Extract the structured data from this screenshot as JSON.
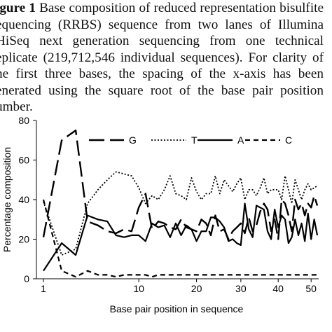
{
  "caption": {
    "label": "igure 1",
    "lines": [
      " Base composition of reduced representation bisulfite",
      "equencing (RRBS) sequence from two lanes of Illumina",
      "HiSeq next generation sequencing from one technical",
      "eplicate (219,712,546 individual sequences).  For clarity of",
      "he first three bases, the spacing of the x-axis has been",
      "enerated using the square root of the base pair position",
      "umber."
    ]
  },
  "chart_data": {
    "type": "line",
    "title": "",
    "xlabel": "Base pair position in sequence",
    "ylabel": "Percentage composition",
    "x_scale": "sqrt",
    "xlim": [
      1,
      52
    ],
    "ylim": [
      0,
      80
    ],
    "x_ticks": [
      1,
      10,
      20,
      30,
      40,
      50
    ],
    "y_ticks": [
      0,
      20,
      40,
      60,
      80
    ],
    "legend_position": "top",
    "x": [
      1,
      2,
      3,
      4,
      5,
      6,
      7,
      8,
      9,
      10,
      11,
      12,
      13,
      14,
      15,
      16,
      17,
      18,
      19,
      20,
      21,
      22,
      23,
      24,
      25,
      26,
      27,
      28,
      29,
      30,
      31,
      32,
      33,
      34,
      35,
      36,
      37,
      38,
      39,
      40,
      41,
      42,
      43,
      44,
      45,
      46,
      47,
      48,
      49,
      50,
      51,
      52
    ],
    "series": [
      {
        "name": "G",
        "dash": "long",
        "values": [
          21,
          70,
          75,
          29,
          27,
          24,
          23,
          25,
          24,
          36,
          43,
          25,
          29,
          28,
          26,
          25,
          30,
          26,
          25,
          24,
          30,
          28,
          22,
          32,
          24,
          25,
          20,
          24,
          26,
          28,
          23,
          31,
          24,
          27,
          34,
          38,
          35,
          24,
          30,
          20,
          40,
          38,
          32,
          24,
          40,
          35,
          38,
          32,
          38,
          36,
          42,
          37
        ]
      },
      {
        "name": "T",
        "dash": "dotted",
        "values": [
          39,
          12,
          15,
          38,
          45,
          50,
          54,
          53,
          52,
          46,
          38,
          42,
          40,
          45,
          52,
          43,
          42,
          40,
          51,
          44,
          40,
          43,
          43,
          52,
          43,
          50,
          47,
          44,
          48,
          51,
          40,
          45,
          45,
          42,
          46,
          51,
          43,
          45,
          45,
          45,
          40,
          52,
          45,
          38,
          50,
          45,
          40,
          45,
          48,
          45,
          46,
          47
        ]
      },
      {
        "name": "A",
        "dash": "solid",
        "values": [
          4,
          18,
          12,
          32,
          30,
          29,
          22,
          21,
          22,
          22,
          19,
          28,
          26,
          27,
          21,
          28,
          22,
          27,
          25,
          19,
          24,
          24,
          31,
          31,
          29,
          26,
          19,
          20,
          18,
          17,
          38,
          25,
          21,
          37,
          36,
          35,
          24,
          20,
          35,
          26,
          32,
          30,
          18,
          21,
          30,
          22,
          28,
          19,
          33,
          20,
          30,
          22
        ]
      },
      {
        "name": "C",
        "dash": "dashed",
        "values": [
          40,
          4,
          1,
          4,
          2,
          2,
          1,
          2,
          2,
          2,
          2,
          1,
          2,
          2,
          2,
          2,
          2,
          2,
          2,
          2,
          2,
          2,
          2,
          2,
          2,
          2,
          2,
          2,
          2,
          2,
          2,
          2,
          2,
          2,
          2,
          2,
          2,
          2,
          2,
          2,
          2,
          2,
          2,
          2,
          2,
          2,
          2,
          2,
          2,
          2,
          2,
          2
        ]
      }
    ]
  }
}
